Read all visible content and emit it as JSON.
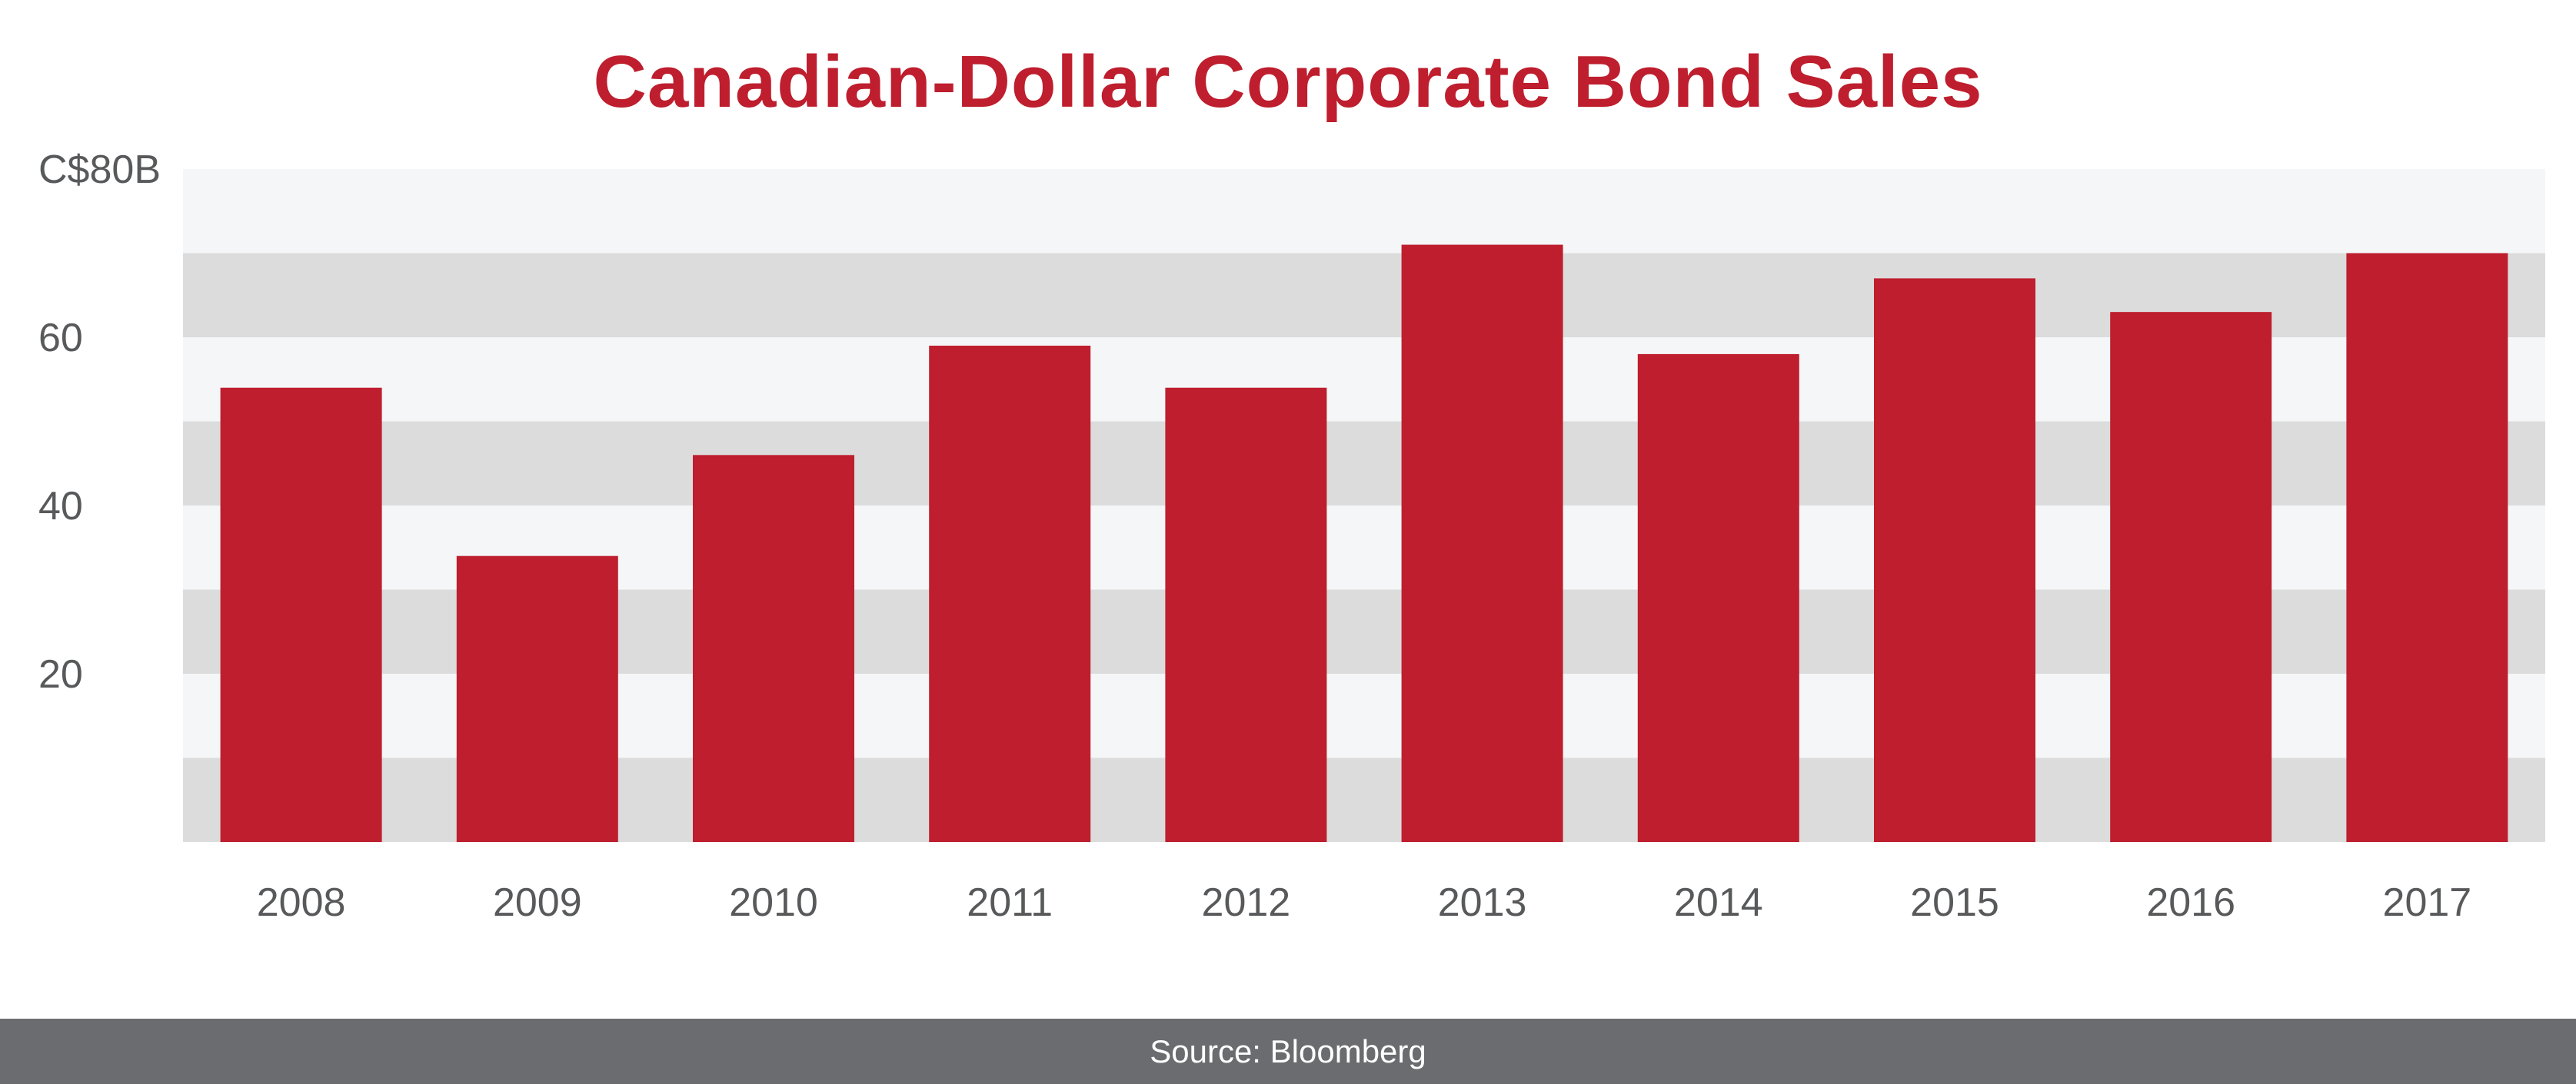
{
  "chart_data": {
    "type": "bar",
    "title": "Canadian-Dollar Corporate Bond Sales",
    "categories": [
      "2008",
      "2009",
      "2010",
      "2011",
      "2012",
      "2013",
      "2014",
      "2015",
      "2016",
      "2017"
    ],
    "values": [
      54,
      34,
      46,
      59,
      54,
      71,
      58,
      67,
      63,
      70
    ],
    "ylim": [
      0,
      80
    ],
    "yticks": [
      20,
      40,
      60,
      80
    ],
    "ytick_labels": [
      "20",
      "40",
      "60",
      "C$80B"
    ],
    "xlabel": "",
    "ylabel": "",
    "grid": "alternating horizontal bands",
    "legend": "none",
    "colors": {
      "bar": "#be1e2d",
      "band_light": "#f5f6f8",
      "band_dark": "#dcdcdc",
      "tick_text": "#58595b",
      "title": "#be1e2d"
    }
  },
  "source": {
    "text": "Source: Bloomberg",
    "background": "#6b6c70"
  }
}
